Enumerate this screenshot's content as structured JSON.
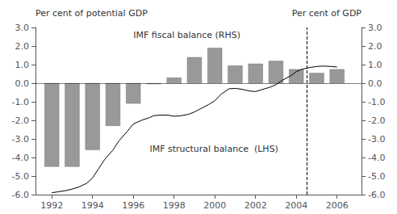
{
  "chart_data": {
    "type": "bar",
    "ylabel": "Per cent of potential GDP",
    "y2label": "Per cent of GDP",
    "annotations": [
      "IMF fiscal balance (RHS)",
      "IMF structural balance  (LHS)"
    ],
    "series": [
      {
        "type": "bar",
        "axis": "y2",
        "color": "#999999",
        "x": [
          1992,
          1993,
          1994,
          1995,
          1996,
          1997,
          1998,
          1999,
          2000,
          2001,
          2002,
          2003,
          2004,
          2005,
          2006
        ],
        "values": [
          -4.5,
          -4.5,
          -3.6,
          -2.3,
          -1.1,
          -0.05,
          0.3,
          1.4,
          1.9,
          0.95,
          1.05,
          1.2,
          0.75,
          0.55,
          0.75
        ]
      },
      {
        "type": "line",
        "color": "#000000",
        "x": [
          1992,
          1992.3,
          1992.7,
          1993,
          1993.3,
          1993.7,
          1994,
          1994.3,
          1994.6,
          1995,
          1995.3,
          1995.7,
          1996,
          1996.4,
          1996.8,
          1997,
          1997.3,
          1997.7,
          1998,
          1998.3,
          1998.7,
          1999,
          1999.3,
          1999.7,
          2000,
          2000.3,
          2000.7,
          2001,
          2001.3,
          2001.7,
          2002,
          2002.3,
          2002.7,
          2003,
          2003.3,
          2003.7,
          2004,
          2004.3,
          2004.7,
          2005,
          2005.3,
          2005.7,
          2006
        ],
        "values": [
          -5.9,
          -5.85,
          -5.78,
          -5.7,
          -5.6,
          -5.4,
          -5.1,
          -4.6,
          -4.1,
          -3.6,
          -3.1,
          -2.6,
          -2.2,
          -2.0,
          -1.85,
          -1.75,
          -1.72,
          -1.72,
          -1.78,
          -1.76,
          -1.68,
          -1.55,
          -1.38,
          -1.15,
          -0.95,
          -0.6,
          -0.3,
          -0.28,
          -0.32,
          -0.42,
          -0.45,
          -0.35,
          -0.22,
          -0.08,
          0.15,
          0.38,
          0.62,
          0.76,
          0.85,
          0.9,
          0.92,
          0.9,
          0.87
        ]
      }
    ],
    "hline": 0,
    "vline": 2004.5,
    "xlim": [
      1991.2,
      2007.2
    ],
    "xticks": [
      1992,
      1994,
      1996,
      1998,
      2000,
      2002,
      2004,
      2006
    ],
    "ylim": [
      -6.0,
      3.0
    ],
    "yticks": [
      {
        "value": -6.0,
        "label": "-6.0"
      },
      {
        "value": -5.0,
        "label": "-5.0"
      },
      {
        "value": -4.0,
        "label": "-4.0"
      },
      {
        "value": -3.0,
        "label": "-3.0"
      },
      {
        "value": -2.0,
        "label": "-2.0"
      },
      {
        "value": -1.0,
        "label": "-1.0"
      },
      {
        "value": 0.0,
        "label": "0.0"
      },
      {
        "value": 1.0,
        "label": "1.0"
      },
      {
        "value": 2.0,
        "label": "2.0"
      },
      {
        "value": 3.0,
        "label": "3.0"
      }
    ],
    "y2lim": [
      -6.0,
      3.0
    ],
    "y2ticks": [
      {
        "value": -6.0,
        "label": "-6.0"
      },
      {
        "value": -5.0,
        "label": "-5.0"
      },
      {
        "value": -4.0,
        "label": "-4.0"
      },
      {
        "value": -3.0,
        "label": "-3.0"
      },
      {
        "value": -2.0,
        "label": "-2.0"
      },
      {
        "value": -1.0,
        "label": "-1.0"
      },
      {
        "value": 0.0,
        "label": "0.0"
      },
      {
        "value": 1.0,
        "label": "1.0"
      },
      {
        "value": 2.0,
        "label": "2.0"
      },
      {
        "value": 3.0,
        "label": "3.0"
      }
    ],
    "grid": false
  }
}
